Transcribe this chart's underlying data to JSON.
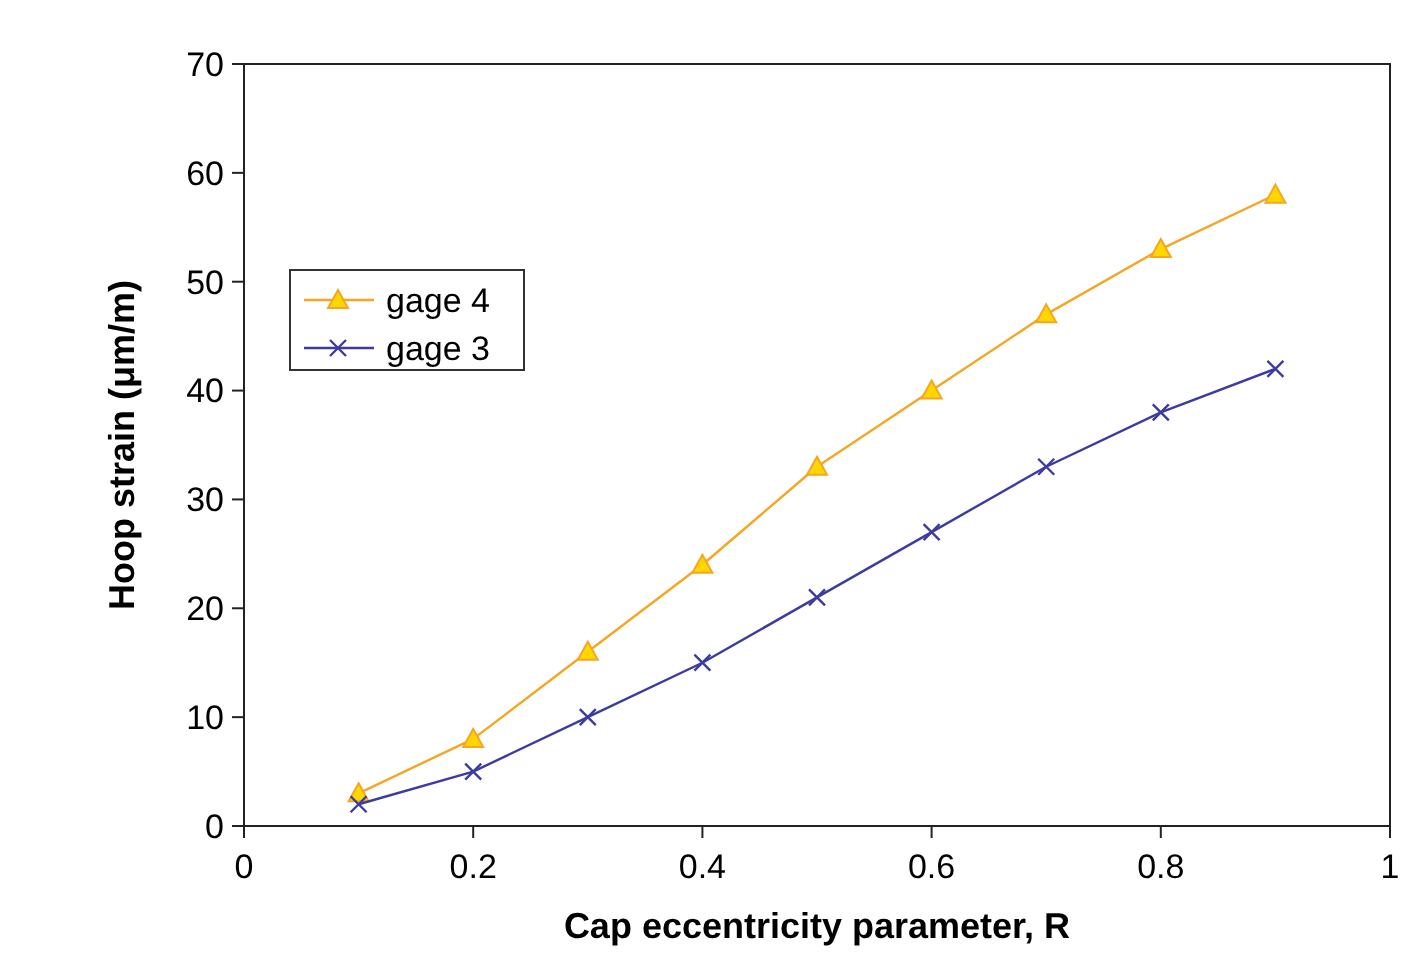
{
  "chart_data": {
    "type": "line",
    "xlabel": "Cap eccentricity parameter, R",
    "ylabel": "Hoop strain (μm/m)",
    "x": [
      0.1,
      0.2,
      0.3,
      0.4,
      0.5,
      0.6,
      0.7,
      0.8,
      0.9
    ],
    "series": [
      {
        "name": "gage 4",
        "color": "#f5a623",
        "marker": "triangle",
        "values": [
          3,
          8,
          16,
          24,
          33,
          40,
          47,
          53,
          58
        ]
      },
      {
        "name": "gage 3",
        "color": "#3c3ca0",
        "marker": "cross",
        "values": [
          2,
          5,
          10,
          15,
          21,
          27,
          33,
          38,
          42
        ]
      }
    ],
    "xlim": [
      0,
      1
    ],
    "xticks": [
      0,
      0.2,
      0.4,
      0.6,
      0.8,
      1
    ],
    "ylim": [
      0,
      70
    ],
    "yticks": [
      0,
      10,
      20,
      30,
      40,
      50,
      60,
      70
    ],
    "grid": false,
    "legend": "top left",
    "line_style": "solid"
  }
}
